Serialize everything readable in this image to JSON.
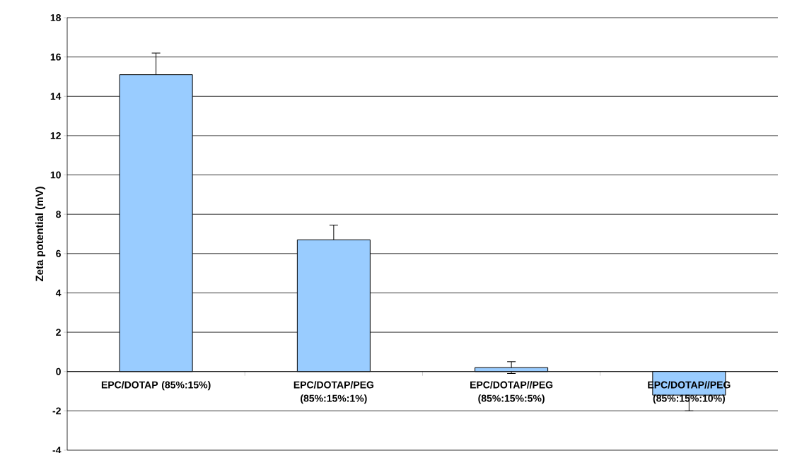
{
  "chart_data": {
    "type": "bar",
    "ylabel": "Zeta potential (mV)",
    "categories": [
      "EPC/DOTAP (85%:15%)",
      "EPC/DOTAP/PEG (85%:15%:1%)",
      "EPC/DOTAP//PEG (85%:15%:5%)",
      "EPC/DOTAP//PEG (85%:15%:10%)"
    ],
    "values": [
      15.1,
      6.7,
      0.2,
      -1.2
    ],
    "errors": [
      1.1,
      0.75,
      0.3,
      0.8
    ],
    "color": "#99ccff",
    "ylim": [
      -4,
      18
    ],
    "yticks": [
      -4,
      -2,
      0,
      2,
      4,
      6,
      8,
      10,
      12,
      14,
      16,
      18
    ],
    "grid": "y"
  }
}
